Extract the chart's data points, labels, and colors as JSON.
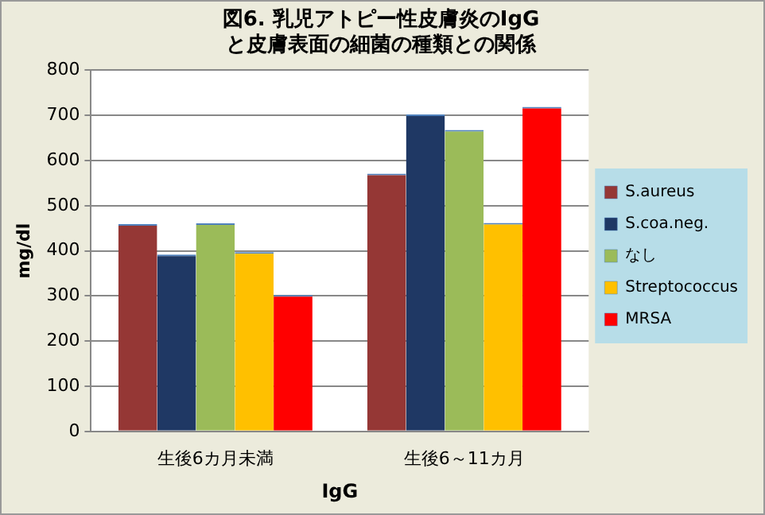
{
  "chart_data": {
    "type": "bar",
    "title": "図6. 乳児アトピー性皮膚炎のIgGと皮膚表面の細菌の種類との関係",
    "xlabel": "IgG",
    "ylabel": "mg/dl",
    "categories": [
      "生後6カ月未満",
      "生後6～11カ月"
    ],
    "series": [
      {
        "name": "S.aureus",
        "color": "#953735",
        "values": [
          459,
          571
        ]
      },
      {
        "name": "S.coa.neg.",
        "color": "#1f3864",
        "values": [
          392,
          702
        ]
      },
      {
        "name": "なし",
        "color": "#9bbb59",
        "values": [
          461,
          668
        ]
      },
      {
        "name": "Streptococcus",
        "color": "#ffc000",
        "values": [
          397,
          462
        ]
      },
      {
        "name": "MRSA",
        "color": "#ff0000",
        "values": [
          302,
          719
        ]
      }
    ],
    "ylim": [
      0,
      800
    ],
    "yticks": [
      0,
      100,
      200,
      300,
      400,
      500,
      600,
      700,
      800
    ],
    "grid": "y",
    "legend": "right"
  }
}
